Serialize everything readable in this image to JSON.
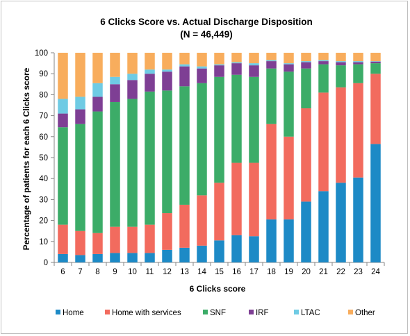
{
  "chart_data": {
    "type": "bar",
    "stacked": true,
    "title": "6 Clicks Score vs. Actual Discharge Disposition",
    "subtitle": "(N = 46,449)",
    "xlabel": "6 Clicks score",
    "ylabel": "Percentage of patients for each 6 Clicks score",
    "ylim": [
      0,
      100
    ],
    "yticks": [
      0,
      10,
      20,
      30,
      40,
      50,
      60,
      70,
      80,
      90,
      100
    ],
    "grid": false,
    "legend_position": "bottom",
    "categories": [
      "6",
      "7",
      "8",
      "9",
      "10",
      "11",
      "12",
      "13",
      "14",
      "15",
      "16",
      "17",
      "18",
      "19",
      "20",
      "21",
      "22",
      "23",
      "24"
    ],
    "series": [
      {
        "name": "Home",
        "color": "#1d8ac6",
        "values": [
          4,
          3.5,
          4,
          4.5,
          4.5,
          4.5,
          6,
          7,
          8,
          10.5,
          13,
          12.5,
          20.5,
          20.5,
          29,
          34,
          38,
          40.5,
          56.5
        ]
      },
      {
        "name": "Home with services",
        "color": "#f26b5e",
        "values": [
          14,
          11.5,
          10,
          12.5,
          12.5,
          13.5,
          17.5,
          20.5,
          24,
          27.5,
          34.5,
          35,
          45.5,
          39.5,
          44.5,
          47,
          45.5,
          45,
          33.5
        ]
      },
      {
        "name": "SNF",
        "color": "#3cac68",
        "values": [
          46.5,
          51,
          58,
          59.5,
          61,
          63.5,
          58.5,
          56.5,
          53.5,
          50.5,
          42,
          41,
          26.5,
          31,
          19,
          13.5,
          10.5,
          9,
          5
        ]
      },
      {
        "name": "IRF",
        "color": "#7e3f94",
        "values": [
          6.5,
          7,
          7,
          8.5,
          9,
          8.5,
          9,
          9.5,
          7,
          5.5,
          5.5,
          5.5,
          3.5,
          3.5,
          3,
          1.5,
          1.5,
          1,
          0.8
        ]
      },
      {
        "name": "LTAC",
        "color": "#6fcbe4",
        "values": [
          7,
          6,
          6.5,
          3.5,
          3,
          2,
          1,
          1,
          1,
          0.5,
          0.5,
          1,
          0.5,
          0.5,
          0.5,
          0.5,
          0.5,
          0.5,
          0.2
        ]
      },
      {
        "name": "Other",
        "color": "#f8ad5d",
        "values": [
          22,
          21,
          14.5,
          11.5,
          10,
          8,
          8,
          5.5,
          6.5,
          5.5,
          4.5,
          5,
          3.5,
          5,
          4,
          3.5,
          4,
          4,
          4
        ]
      }
    ]
  }
}
